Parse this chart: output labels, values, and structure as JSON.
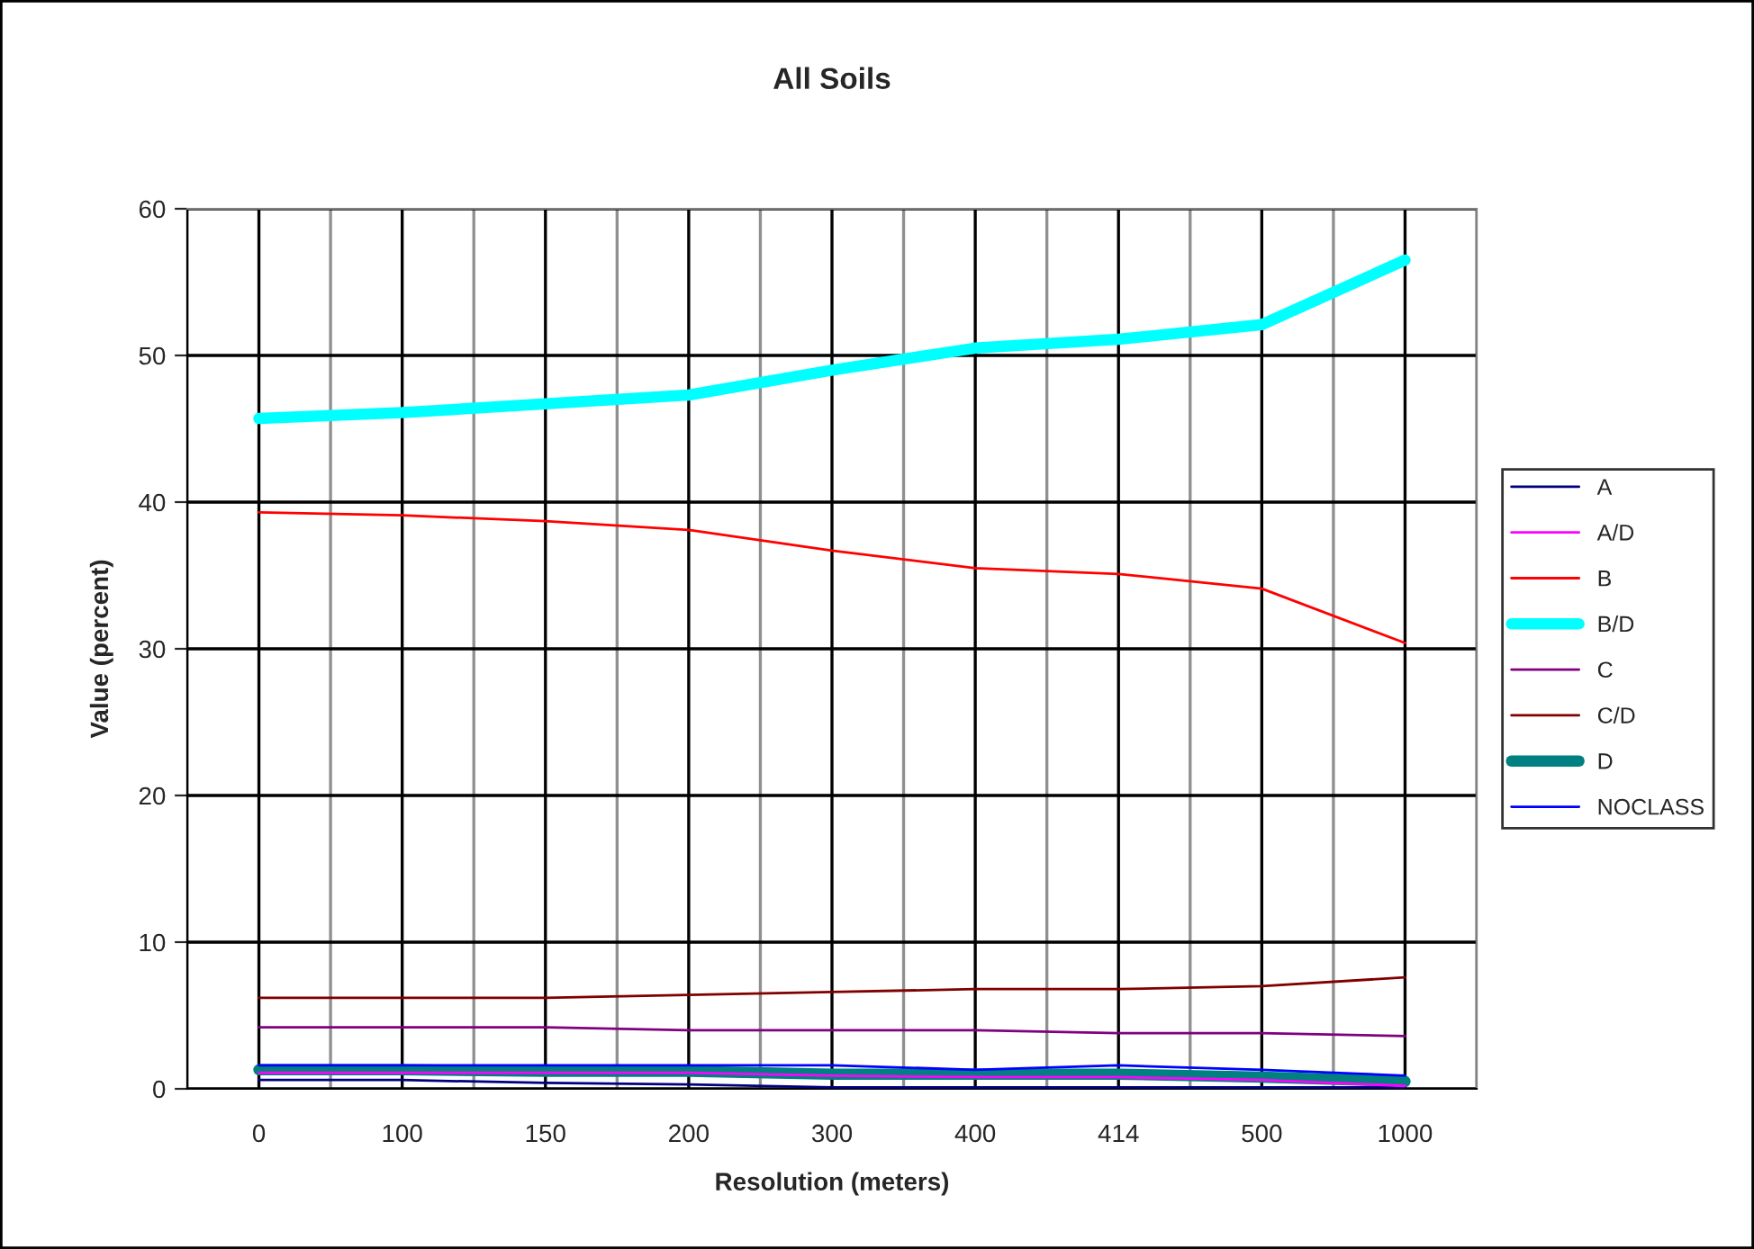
{
  "chart_data": {
    "type": "line",
    "title": "All Soils",
    "xlabel": "Resolution (meters)",
    "ylabel": "Value (percent)",
    "categories": [
      "0",
      "100",
      "150",
      "200",
      "300",
      "400",
      "414",
      "500",
      "1000"
    ],
    "series": [
      {
        "name": "A",
        "color": "#000080",
        "values": [
          0.6,
          0.6,
          0.4,
          0.3,
          0.1,
          0.1,
          0.1,
          0.1,
          0.1
        ]
      },
      {
        "name": "A/D",
        "color": "#ff00ff",
        "values": [
          1.1,
          1.1,
          1.1,
          1.1,
          0.9,
          0.8,
          0.8,
          0.6,
          0.2
        ]
      },
      {
        "name": "B",
        "color": "#ff0000",
        "values": [
          39.3,
          39.1,
          38.7,
          38.1,
          36.7,
          35.5,
          35.1,
          34.1,
          30.4
        ]
      },
      {
        "name": "B/D",
        "color": "#00ffff",
        "values": [
          45.7,
          46.1,
          46.7,
          47.3,
          49.0,
          50.5,
          51.1,
          52.1,
          56.5
        ]
      },
      {
        "name": "C",
        "color": "#800080",
        "values": [
          4.2,
          4.2,
          4.2,
          4.0,
          4.0,
          4.0,
          3.8,
          3.8,
          3.6
        ]
      },
      {
        "name": "C/D",
        "color": "#800000",
        "values": [
          6.2,
          6.2,
          6.2,
          6.4,
          6.6,
          6.8,
          6.8,
          7.0,
          7.6
        ]
      },
      {
        "name": "D",
        "color": "#008080",
        "values": [
          1.3,
          1.3,
          1.2,
          1.2,
          1.0,
          1.0,
          1.0,
          0.8,
          0.5
        ]
      },
      {
        "name": "NOCLASS",
        "color": "#0000ff",
        "values": [
          1.6,
          1.6,
          1.6,
          1.6,
          1.6,
          1.3,
          1.6,
          1.3,
          0.9
        ]
      }
    ],
    "ylim": [
      0,
      60
    ],
    "yticks": [
      0,
      10,
      20,
      30,
      40,
      50,
      60
    ],
    "grid": true,
    "legend": "right",
    "marker": "none",
    "line_style": "solid"
  }
}
